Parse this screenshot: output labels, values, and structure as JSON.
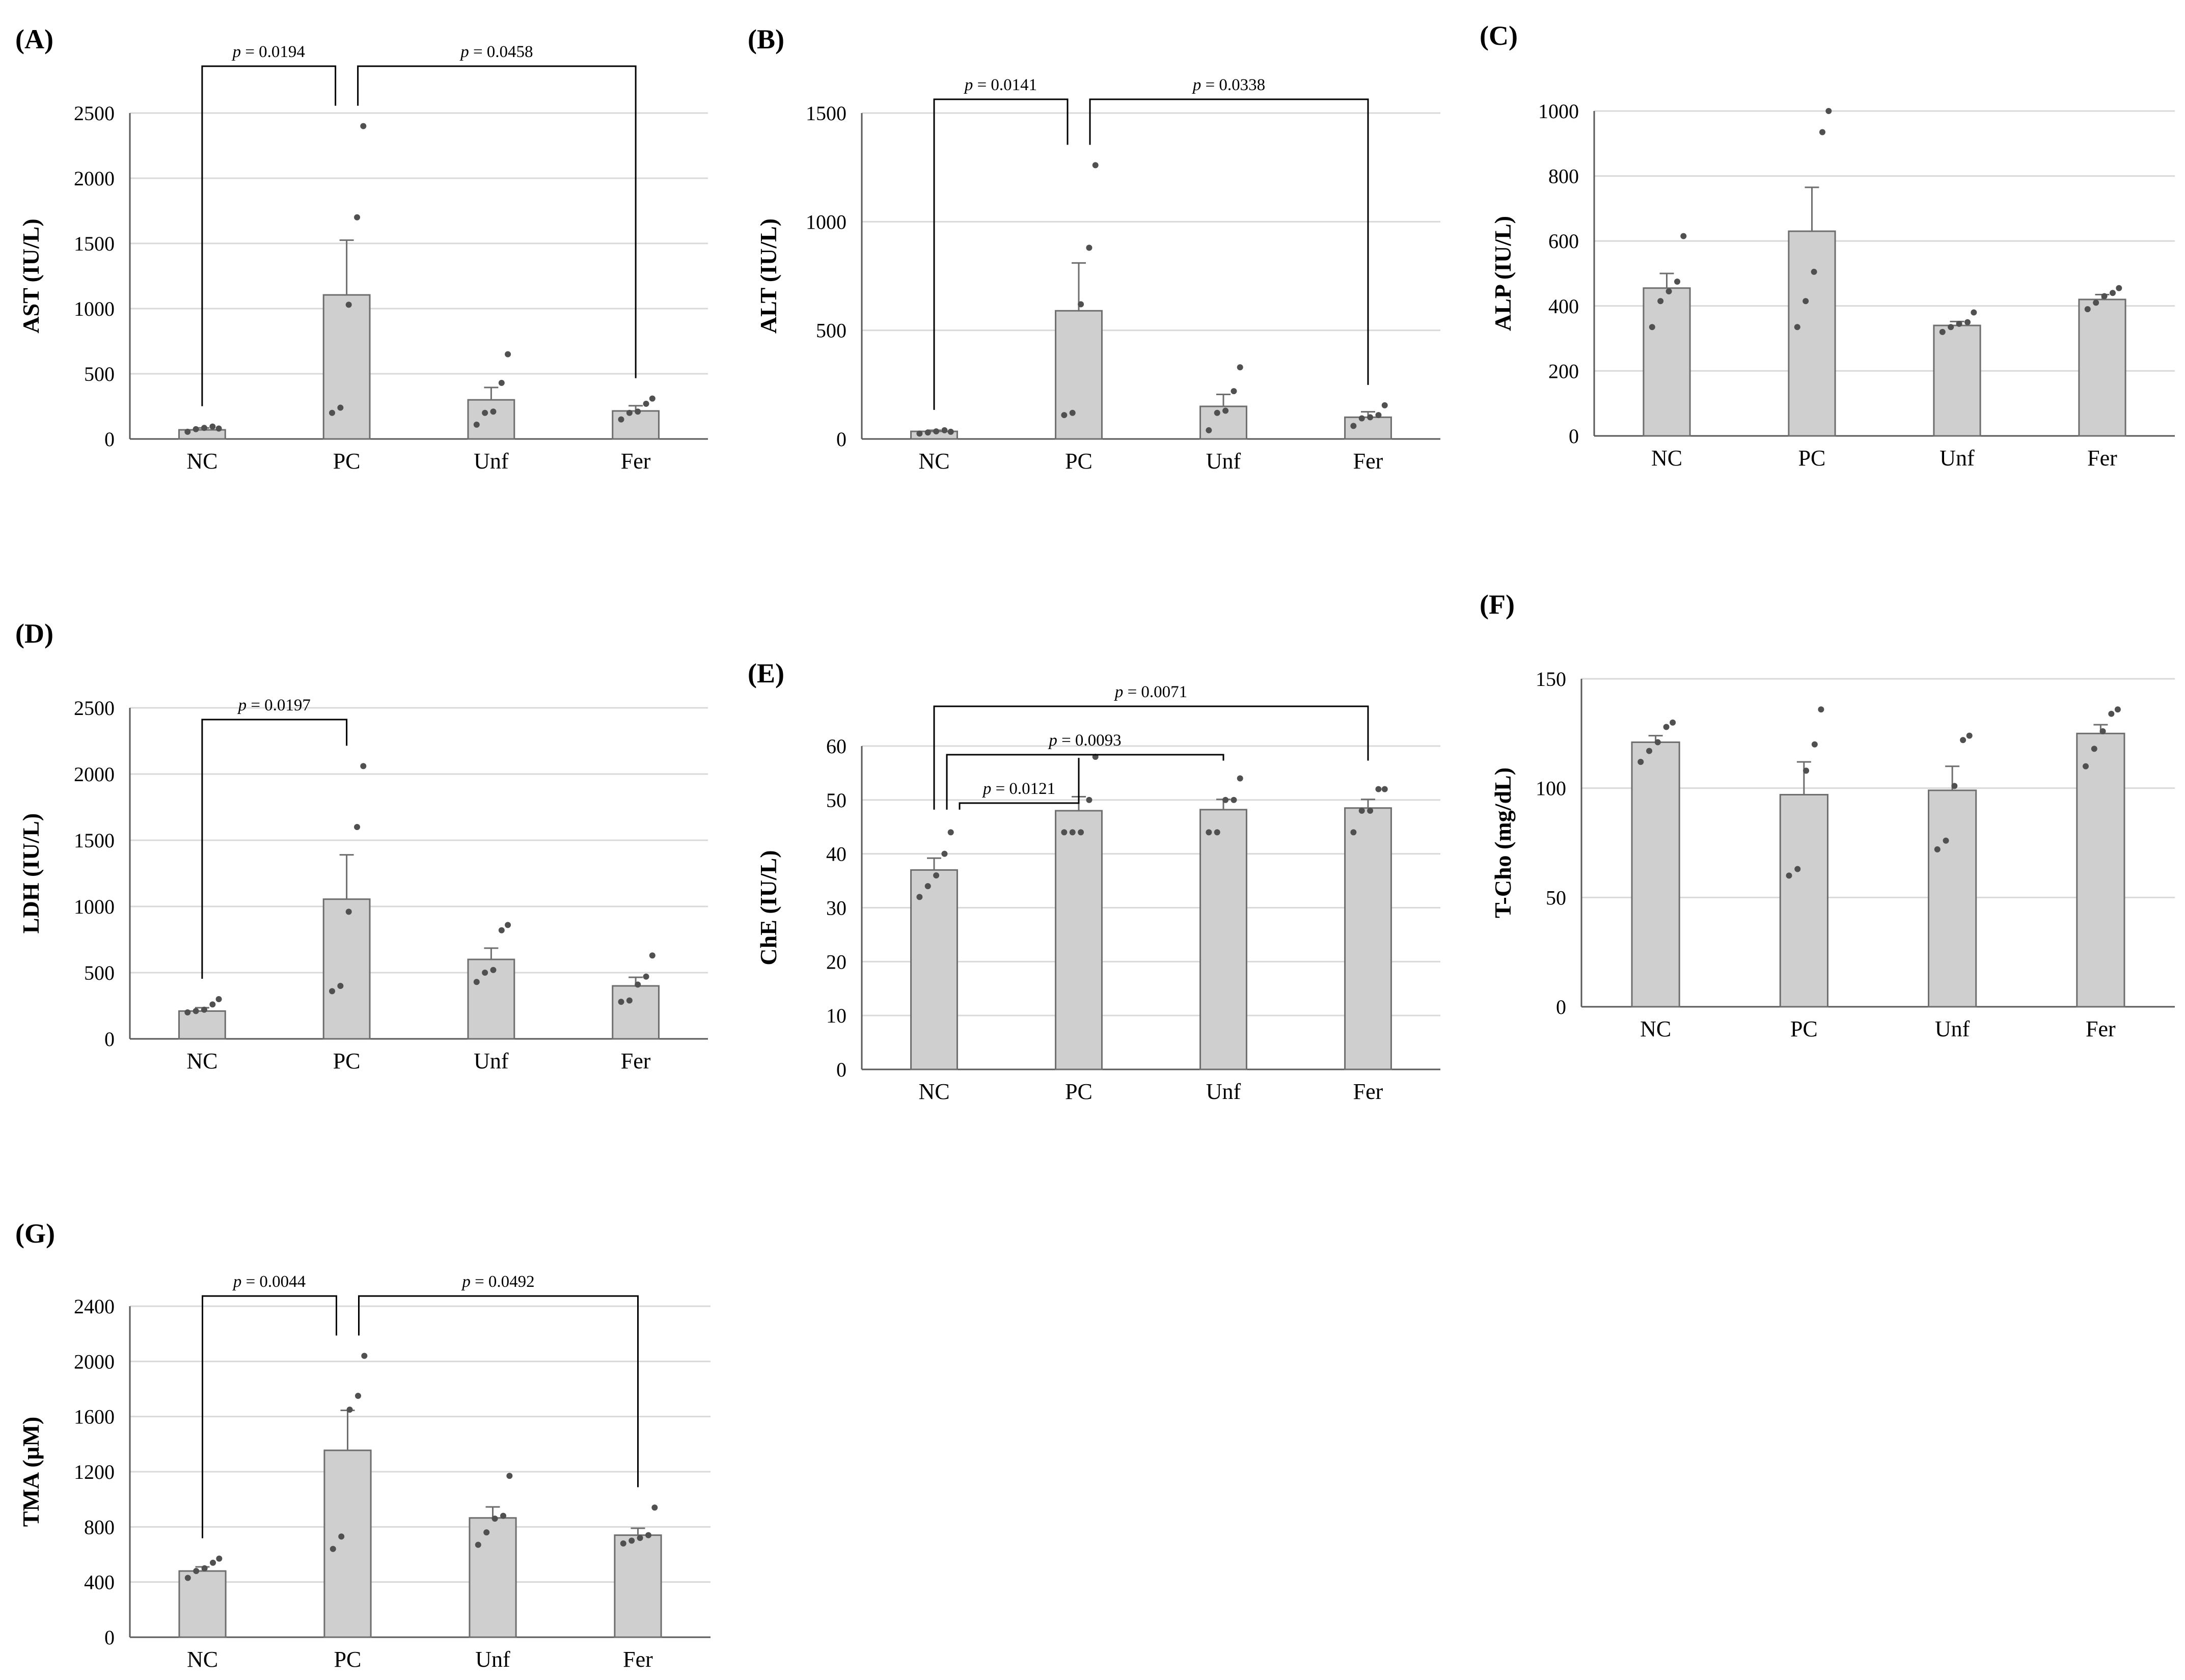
{
  "colors": {
    "bar_fill": "#d0cfcf",
    "bar_stroke": "#6e6e6e",
    "grid": "#d9d9d9",
    "axis": "#595959",
    "point": "#505050",
    "bracket": "#000000"
  },
  "chart_data": [
    {
      "type": "bar",
      "panel": "(A)",
      "ylabel": "AST (IU/L)",
      "categories": [
        "NC",
        "PC",
        "Unf",
        "Fer"
      ],
      "ylim": [
        0,
        2500
      ],
      "yticks": [
        0,
        500,
        1000,
        1500,
        2000,
        2500
      ],
      "grid": true,
      "values": [
        70,
        1105,
        300,
        215
      ],
      "errors": [
        15,
        420,
        95,
        40
      ],
      "points": [
        [
          55,
          75,
          85,
          95,
          80
        ],
        [
          200,
          240,
          1030,
          1700,
          2400
        ],
        [
          110,
          200,
          210,
          430,
          650
        ],
        [
          150,
          200,
          210,
          270,
          310
        ]
      ],
      "comparisons": [
        {
          "from": 0,
          "to": 1,
          "label": "p = 0.0194",
          "p_prefix": "p",
          "p_value": "= 0.0194"
        },
        {
          "from": 1,
          "to": 3,
          "label": "p = 0.0458",
          "p_prefix": "p",
          "p_value": "= 0.0458"
        }
      ]
    },
    {
      "type": "bar",
      "panel": "(B)",
      "ylabel": "ALT (IU/L)",
      "categories": [
        "NC",
        "PC",
        "Unf",
        "Fer"
      ],
      "ylim": [
        0,
        1500
      ],
      "yticks": [
        0,
        500,
        1000,
        1500
      ],
      "grid": true,
      "values": [
        35,
        590,
        150,
        100
      ],
      "errors": [
        5,
        220,
        55,
        25
      ],
      "points": [
        [
          25,
          30,
          35,
          40,
          33
        ],
        [
          110,
          120,
          620,
          880,
          1260
        ],
        [
          40,
          120,
          130,
          220,
          330
        ],
        [
          60,
          95,
          100,
          110,
          155
        ]
      ],
      "comparisons": [
        {
          "from": 0,
          "to": 1,
          "label": "p = 0.0141",
          "p_prefix": "p",
          "p_value": "= 0.0141"
        },
        {
          "from": 1,
          "to": 3,
          "label": "p = 0.0338",
          "p_prefix": "p",
          "p_value": "= 0.0338"
        }
      ]
    },
    {
      "type": "bar",
      "panel": "(C)",
      "ylabel": "ALP (IU/L)",
      "categories": [
        "NC",
        "PC",
        "Unf",
        "Fer"
      ],
      "ylim": [
        0,
        1000
      ],
      "yticks": [
        0,
        200,
        400,
        600,
        800,
        1000
      ],
      "grid": true,
      "values": [
        455,
        630,
        340,
        420
      ],
      "errors": [
        45,
        135,
        12,
        15
      ],
      "points": [
        [
          335,
          415,
          445,
          475,
          615
        ],
        [
          335,
          415,
          505,
          935,
          1000
        ],
        [
          320,
          335,
          345,
          350,
          380
        ],
        [
          390,
          410,
          430,
          440,
          455
        ]
      ],
      "comparisons": []
    },
    {
      "type": "bar",
      "panel": "(D)",
      "ylabel": "LDH (IU/L)",
      "categories": [
        "NC",
        "PC",
        "Unf",
        "Fer"
      ],
      "ylim": [
        0,
        2500
      ],
      "yticks": [
        0,
        500,
        1000,
        1500,
        2000,
        2500
      ],
      "grid": true,
      "values": [
        210,
        1055,
        600,
        400
      ],
      "errors": [
        25,
        335,
        85,
        65
      ],
      "points": [
        [
          200,
          210,
          220,
          260,
          300
        ],
        [
          360,
          400,
          960,
          1600,
          2060
        ],
        [
          430,
          500,
          520,
          820,
          860
        ],
        [
          280,
          290,
          410,
          470,
          630
        ]
      ],
      "comparisons": [
        {
          "from": 0,
          "to": 1,
          "label": "p = 0.0197",
          "p_prefix": "p",
          "p_value": "= 0.0197"
        }
      ]
    },
    {
      "type": "bar",
      "panel": "(E)",
      "ylabel": "ChE (IU/L)",
      "categories": [
        "NC",
        "PC",
        "Unf",
        "Fer"
      ],
      "ylim": [
        0,
        60
      ],
      "yticks": [
        0,
        10,
        20,
        30,
        40,
        50,
        60
      ],
      "grid": true,
      "values": [
        37,
        48,
        48.2,
        48.5
      ],
      "errors": [
        2.2,
        2.6,
        1.9,
        1.6
      ],
      "points": [
        [
          32,
          34,
          36,
          40,
          44
        ],
        [
          44,
          44,
          44,
          50,
          58
        ],
        [
          44,
          44,
          50,
          50,
          54
        ],
        [
          44,
          48,
          48,
          52,
          52
        ]
      ],
      "comparisons": [
        {
          "from": 0,
          "to": 1,
          "label": "p = 0.0121",
          "p_prefix": "p",
          "p_value": "= 0.0121"
        },
        {
          "from": 0,
          "to": 2,
          "label": "p = 0.0093",
          "p_prefix": "p",
          "p_value": "= 0.0093"
        },
        {
          "from": 0,
          "to": 3,
          "label": "p = 0.0071",
          "p_prefix": "p",
          "p_value": "= 0.0071"
        }
      ]
    },
    {
      "type": "bar",
      "panel": "(F)",
      "ylabel": "T-Cho (mg/dL)",
      "categories": [
        "NC",
        "PC",
        "Unf",
        "Fer"
      ],
      "ylim": [
        0,
        150
      ],
      "yticks": [
        0,
        50,
        100,
        150
      ],
      "grid": true,
      "values": [
        121,
        97,
        99,
        125
      ],
      "errors": [
        3,
        15,
        11,
        4
      ],
      "points": [
        [
          112,
          117,
          121,
          128,
          130
        ],
        [
          60,
          63,
          108,
          120,
          136
        ],
        [
          72,
          76,
          101,
          122,
          124
        ],
        [
          110,
          118,
          126,
          134,
          136
        ]
      ],
      "comparisons": []
    },
    {
      "type": "bar",
      "panel": "(G)",
      "ylabel": "TMA (μM)",
      "categories": [
        "NC",
        "PC",
        "Unf",
        "Fer"
      ],
      "ylim": [
        0,
        2400
      ],
      "yticks": [
        0,
        400,
        800,
        1200,
        1600,
        2000,
        2400
      ],
      "grid": true,
      "values": [
        480,
        1355,
        865,
        740
      ],
      "errors": [
        30,
        290,
        80,
        50
      ],
      "points": [
        [
          430,
          480,
          500,
          540,
          570
        ],
        [
          640,
          730,
          1650,
          1750,
          2040
        ],
        [
          670,
          760,
          860,
          880,
          1170
        ],
        [
          680,
          700,
          720,
          740,
          940
        ]
      ],
      "comparisons": [
        {
          "from": 0,
          "to": 1,
          "label": "p = 0.0044",
          "p_prefix": "p",
          "p_value": "= 0.0044"
        },
        {
          "from": 1,
          "to": 3,
          "label": "p = 0.0492",
          "p_prefix": "p",
          "p_value": "= 0.0492"
        }
      ]
    }
  ]
}
